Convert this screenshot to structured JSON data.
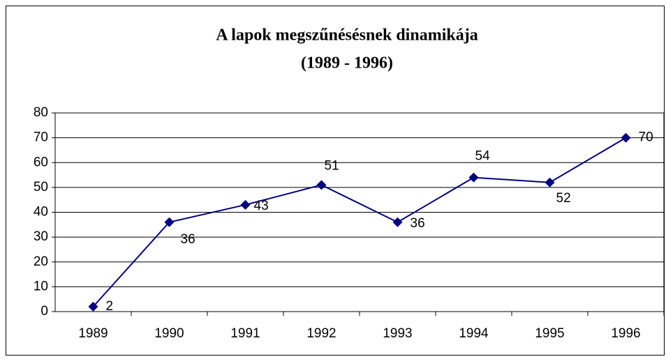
{
  "chart_data": {
    "type": "line",
    "title": "A lapok megszűnésésnek dinamikája",
    "subtitle": "(1989 - 1996)",
    "categories": [
      "1989",
      "1990",
      "1991",
      "1992",
      "1993",
      "1994",
      "1995",
      "1996"
    ],
    "series": [
      {
        "color": "#000080",
        "values": [
          2,
          36,
          43,
          51,
          36,
          54,
          52,
          70
        ]
      }
    ],
    "ylim": [
      0,
      80
    ],
    "yticks": [
      0,
      10,
      20,
      30,
      40,
      50,
      60,
      70,
      80
    ],
    "grid": true
  }
}
